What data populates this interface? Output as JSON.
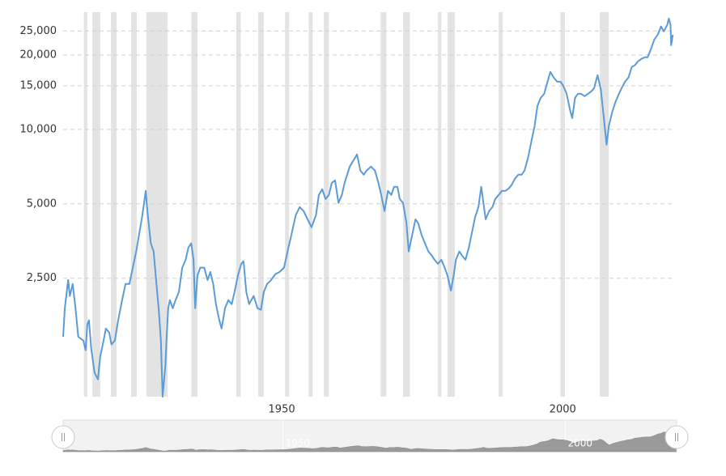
{
  "chart_data": {
    "type": "line",
    "x": [
      1911.1,
      1911.4,
      1912.0,
      1912.3,
      1912.8,
      1913.3,
      1913.8,
      1914.7,
      1915.1,
      1915.4,
      1915.7,
      1916.1,
      1916.7,
      1917.3,
      1917.7,
      1918.3,
      1918.7,
      1919.3,
      1919.7,
      1920.3,
      1920.9,
      1921.6,
      1922.2,
      1922.9,
      1923.5,
      1924.1,
      1924.6,
      1925.2,
      1925.8,
      1926.1,
      1926.7,
      1927.2,
      1927.7,
      1928.1,
      1928.5,
      1928.8,
      1929.3,
      1929.5,
      1929.8,
      1930.1,
      1930.6,
      1931.1,
      1931.7,
      1932.3,
      1932.9,
      1933.4,
      1933.9,
      1934.3,
      1934.6,
      1935.0,
      1935.5,
      1936.2,
      1936.8,
      1937.3,
      1937.8,
      1938.3,
      1938.9,
      1939.3,
      1939.9,
      1940.5,
      1941.1,
      1941.6,
      1942.2,
      1942.8,
      1943.2,
      1943.7,
      1944.2,
      1945.0,
      1945.7,
      1946.3,
      1946.8,
      1947.4,
      1948.1,
      1948.9,
      1949.6,
      1950.4,
      1951.2,
      1951.7,
      1952.5,
      1953.2,
      1953.9,
      1954.6,
      1955.3,
      1956.1,
      1956.6,
      1957.2,
      1957.8,
      1958.4,
      1958.9,
      1959.5,
      1960.1,
      1960.7,
      1961.2,
      1962.1,
      1962.8,
      1963.4,
      1964.0,
      1964.6,
      1965.1,
      1965.9,
      1966.6,
      1967.2,
      1967.7,
      1968.3,
      1968.9,
      1969.5,
      1970.0,
      1970.6,
      1971.0,
      1971.6,
      1972.2,
      1972.6,
      1973.2,
      1973.8,
      1974.3,
      1974.9,
      1975.5,
      1976.1,
      1976.7,
      1977.2,
      1977.8,
      1978.4,
      1979.0,
      1979.5,
      1980.1,
      1980.6,
      1981.0,
      1981.6,
      1982.1,
      1982.7,
      1983.3,
      1983.9,
      1984.4,
      1985.0,
      1985.5,
      1985.9,
      1986.3,
      1986.9,
      1987.5,
      1988.0,
      1988.6,
      1989.2,
      1989.8,
      1990.4,
      1990.9,
      1991.5,
      1992.1,
      1992.7,
      1993.2,
      1993.8,
      1994.4,
      1995.0,
      1995.5,
      1996.1,
      1996.7,
      1997.3,
      1997.8,
      1998.4,
      1999.0,
      1999.6,
      2000.1,
      2000.7,
      2001.3,
      2001.7,
      2002.2,
      2002.7,
      2003.3,
      2003.9,
      2004.5,
      2005.1,
      2005.6,
      2006.2,
      2006.8,
      2007.4,
      2007.8,
      2008.2,
      2008.8,
      2009.4,
      2010.0,
      2010.5,
      2011.1,
      2011.7,
      2012.3,
      2012.8,
      2013.4,
      2014.0,
      2014.6,
      2015.1,
      2015.7,
      2016.3,
      2016.9,
      2017.5,
      2018.0,
      2018.6,
      2018.9,
      2019.2,
      2019.3,
      2019.6
    ],
    "values": [
      1450,
      1890,
      2460,
      2120,
      2370,
      1890,
      1450,
      1400,
      1280,
      1625,
      1690,
      1300,
      1035,
      975,
      1205,
      1400,
      1565,
      1510,
      1350,
      1400,
      1690,
      2040,
      2370,
      2370,
      2760,
      3210,
      3730,
      4500,
      5640,
      4670,
      3460,
      3210,
      2370,
      1890,
      1400,
      830,
      1115,
      1400,
      1890,
      2040,
      1890,
      2040,
      2200,
      2760,
      2970,
      3330,
      3460,
      2970,
      1890,
      2560,
      2760,
      2760,
      2460,
      2650,
      2370,
      1965,
      1690,
      1565,
      1890,
      2040,
      1965,
      2200,
      2560,
      2860,
      2930,
      2200,
      1965,
      2120,
      1890,
      1865,
      2200,
      2370,
      2460,
      2600,
      2650,
      2760,
      3330,
      3730,
      4500,
      4850,
      4670,
      4330,
      4020,
      4500,
      5430,
      5730,
      5230,
      5430,
      6080,
      6220,
      5040,
      5430,
      6080,
      7070,
      7510,
      7920,
      6810,
      6560,
      6810,
      7070,
      6810,
      6080,
      5430,
      4670,
      5640,
      5430,
      5860,
      5860,
      5230,
      5040,
      4170,
      3210,
      3730,
      4330,
      4170,
      3730,
      3460,
      3210,
      3090,
      2970,
      2860,
      2970,
      2760,
      2560,
      2230,
      2560,
      2970,
      3210,
      3090,
      2970,
      3330,
      3870,
      4400,
      4850,
      5860,
      5040,
      4330,
      4670,
      4850,
      5230,
      5430,
      5640,
      5640,
      5770,
      5950,
      6320,
      6560,
      6560,
      6810,
      7625,
      8870,
      10310,
      12450,
      13410,
      13930,
      15600,
      17090,
      16210,
      15600,
      15600,
      15030,
      13930,
      11980,
      11120,
      13410,
      13930,
      13930,
      13630,
      13930,
      14260,
      14690,
      16560,
      14470,
      10700,
      8670,
      10310,
      11720,
      12930,
      13930,
      14690,
      15600,
      16210,
      17870,
      18150,
      18850,
      19270,
      19560,
      19560,
      21100,
      23080,
      24150,
      26050,
      24900,
      26450,
      28080,
      26450,
      21900,
      24150
    ],
    "color": "#5b9bd8",
    "log_scale": true,
    "grid": true,
    "xlim": [
      1911.1,
      2019.7
    ],
    "xticks": [
      1950,
      2000
    ],
    "ylim": [
      830,
      29800
    ],
    "yticks": [
      {
        "value": 2500,
        "label": "2,500"
      },
      {
        "value": 5000,
        "label": "5,000"
      },
      {
        "value": 10000,
        "label": "10,000"
      },
      {
        "value": 15000,
        "label": "15,000"
      },
      {
        "value": 20000,
        "label": "20,000"
      },
      {
        "value": 25000,
        "label": "25,000"
      }
    ],
    "recessions": [
      [
        1914.8,
        1915.4
      ],
      [
        1916.3,
        1917.7
      ],
      [
        1919.6,
        1920.6
      ],
      [
        1923.2,
        1924.2
      ],
      [
        1925.9,
        1929.7
      ],
      [
        1933.9,
        1935.0
      ],
      [
        1941.9,
        1942.7
      ],
      [
        1945.8,
        1946.8
      ],
      [
        1950.6,
        1951.3
      ],
      [
        1954.8,
        1955.5
      ],
      [
        1957.5,
        1958.4
      ],
      [
        1967.6,
        1968.6
      ],
      [
        1971.6,
        1972.8
      ],
      [
        1977.8,
        1978.4
      ],
      [
        1979.5,
        1980.8
      ],
      [
        1988.6,
        1989.3
      ],
      [
        1999.6,
        2000.4
      ],
      [
        2006.6,
        2008.2
      ]
    ],
    "recession_color": "#e3e3e3"
  }
}
